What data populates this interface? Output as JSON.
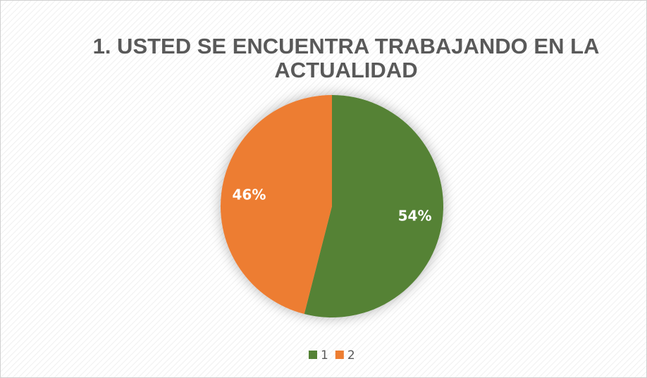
{
  "chart_data": {
    "type": "pie",
    "title": "1. USTED SE ENCUENTRA TRABAJANDO EN LA ACTUALIDAD",
    "categories": [
      "1",
      "2"
    ],
    "values": [
      54,
      46
    ],
    "value_labels": [
      "54%",
      "46%"
    ],
    "colors": [
      "#548235",
      "#ed7d31"
    ],
    "legend": "bottom"
  }
}
